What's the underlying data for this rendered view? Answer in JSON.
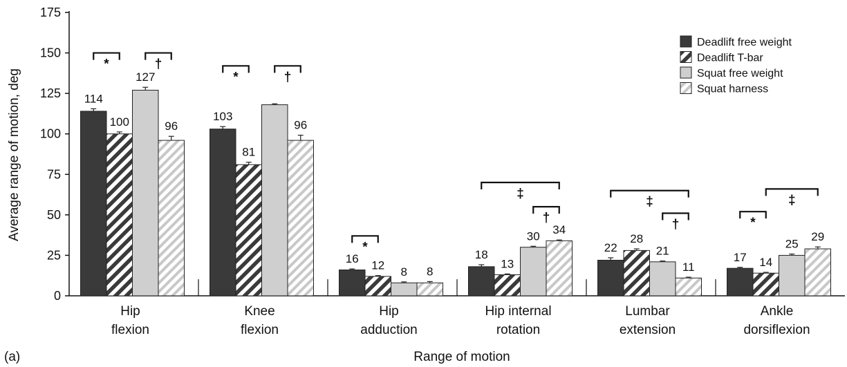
{
  "panel_label": "(a)",
  "chart_data": {
    "type": "bar",
    "xlabel": "Range of motion",
    "ylabel": "Average range of motion, deg",
    "ylim": [
      0,
      175
    ],
    "yticks": [
      0,
      25,
      50,
      75,
      100,
      125,
      150,
      175
    ],
    "grid": false,
    "legend_position": "top-right",
    "categories": [
      [
        "Hip",
        "flexion"
      ],
      [
        "Knee",
        "flexion"
      ],
      [
        "Hip",
        "adduction"
      ],
      [
        "Hip internal",
        "rotation"
      ],
      [
        "Lumbar",
        "extension"
      ],
      [
        "Ankle",
        "dorsiflexion"
      ]
    ],
    "series": [
      {
        "name": "Deadlift free weight",
        "pattern": "solid-dark",
        "color": "#3a3a3a",
        "values": [
          114,
          103,
          16,
          18,
          22,
          17
        ],
        "errors": [
          1.5,
          1.5,
          0.6,
          1.2,
          1.5,
          0.6
        ],
        "labels": [
          "114",
          "103",
          "16",
          "18",
          "22",
          "17"
        ]
      },
      {
        "name": "Deadlift T-bar",
        "pattern": "hatch-dark",
        "color": "#3a3a3a",
        "values": [
          100,
          81,
          12,
          13,
          28,
          14
        ],
        "errors": [
          1.2,
          1.5,
          0.5,
          0.5,
          1.0,
          0.5
        ],
        "labels": [
          "100",
          "81",
          "12",
          "13",
          "28",
          "14"
        ]
      },
      {
        "name": "Squat free weight",
        "pattern": "solid-light",
        "color": "#cfcfcf",
        "values": [
          127,
          118,
          8,
          30,
          21,
          25
        ],
        "errors": [
          1.8,
          0.6,
          0.6,
          0.6,
          0.5,
          0.8
        ],
        "labels": [
          "127",
          "",
          "8",
          "30",
          "21",
          "25"
        ]
      },
      {
        "name": "Squat harness",
        "pattern": "hatch-light",
        "color": "#cfcfcf",
        "values": [
          96,
          96,
          8,
          34,
          11,
          29
        ],
        "errors": [
          2.5,
          3.2,
          0.8,
          0.5,
          0.5,
          1.2
        ],
        "labels": [
          "96",
          "96",
          "8",
          "34",
          "11",
          "29"
        ]
      }
    ],
    "annotations": [
      {
        "category": 0,
        "from": 0,
        "to": 1,
        "y": 150,
        "symbol": "*"
      },
      {
        "category": 0,
        "from": 2,
        "to": 3,
        "y": 150,
        "symbol": "†"
      },
      {
        "category": 1,
        "from": 0,
        "to": 1,
        "y": 142,
        "symbol": "*"
      },
      {
        "category": 1,
        "from": 2,
        "to": 3,
        "y": 142,
        "symbol": "†"
      },
      {
        "category": 2,
        "from": 0,
        "to": 1,
        "y": 37,
        "symbol": "*"
      },
      {
        "category": 3,
        "from": 0,
        "to": 3,
        "y": 70,
        "symbol": "‡"
      },
      {
        "category": 3,
        "from": 2,
        "to": 3,
        "y": 55,
        "symbol": "†"
      },
      {
        "category": 4,
        "from": 0,
        "to": 3,
        "y": 65,
        "symbol": "‡"
      },
      {
        "category": 4,
        "from": 2,
        "to": 3,
        "y": 51,
        "symbol": "†"
      },
      {
        "category": 5,
        "from": 0,
        "to": 1,
        "y": 52,
        "symbol": "*"
      },
      {
        "category": 5,
        "from": 1,
        "to": 3,
        "y": 66,
        "symbol": "‡"
      }
    ]
  }
}
